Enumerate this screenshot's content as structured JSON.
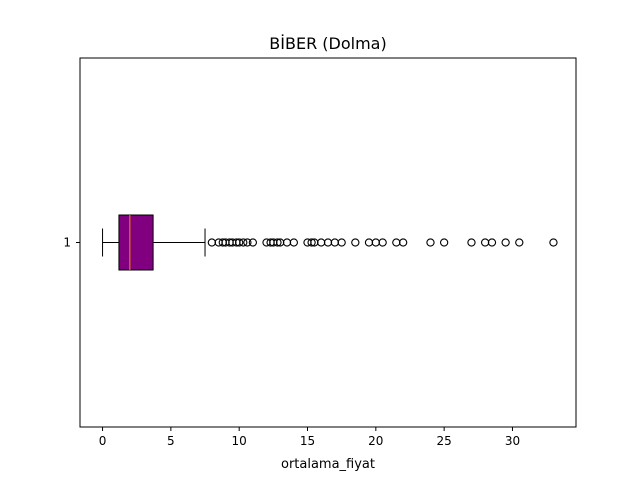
{
  "chart_data": {
    "type": "box",
    "orientation": "horizontal",
    "title": "BİBER (Dolma)",
    "xlabel": "ortalama_fiyat",
    "ylabel": "",
    "xlim": [
      -1.65,
      34.65
    ],
    "xticks": [
      0,
      5,
      10,
      15,
      20,
      25,
      30
    ],
    "y_category_labels": [
      "1"
    ],
    "grid": false,
    "box": {
      "min_whisker": 0.0,
      "q1": 1.2,
      "median": 2.0,
      "q3": 3.7,
      "max_whisker": 7.5,
      "fill_color": "#800080",
      "median_color": "#ff8c00"
    },
    "outliers": [
      8.0,
      8.5,
      8.8,
      9.0,
      9.3,
      9.5,
      9.8,
      10.0,
      10.3,
      10.6,
      11.0,
      12.0,
      12.3,
      12.5,
      12.8,
      13.0,
      13.5,
      14.0,
      15.0,
      15.3,
      15.5,
      16.0,
      16.5,
      17.0,
      17.5,
      18.5,
      19.5,
      20.0,
      20.5,
      21.5,
      22.0,
      24.0,
      25.0,
      27.0,
      28.0,
      28.5,
      29.5,
      30.5,
      33.0
    ]
  }
}
